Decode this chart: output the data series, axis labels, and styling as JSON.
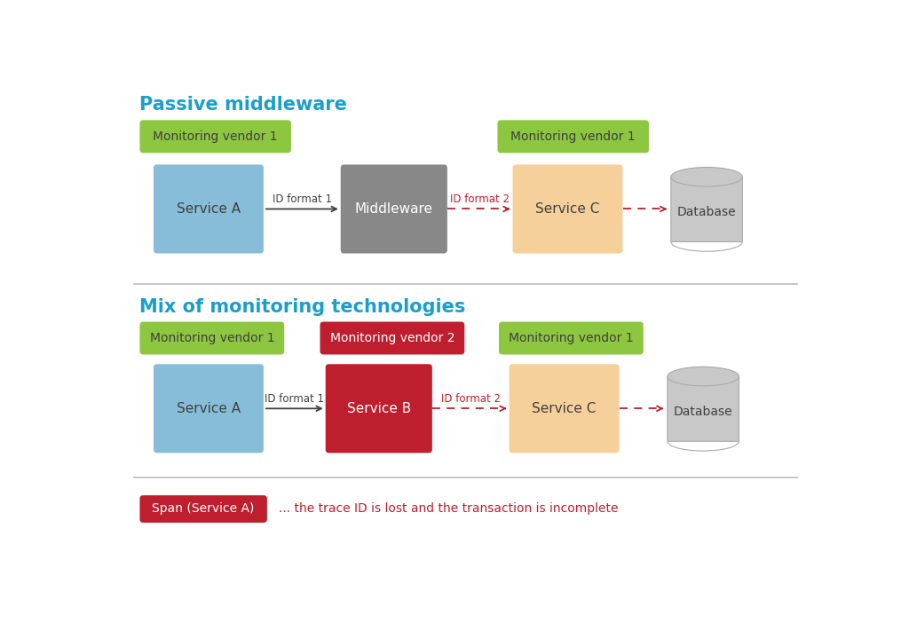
{
  "bg_color": "#ffffff",
  "title1": "Passive middleware",
  "title2": "Mix of monitoring technologies",
  "title_color": "#1a9fcc",
  "title_fontsize": 15,
  "green_color": "#8dc63f",
  "green_text_color": "#404040",
  "blue_color": "#87bdd8",
  "gray_color": "#888888",
  "orange_color": "#f5d09a",
  "red_color": "#be1e2d",
  "dark_text": "#404040",
  "white_text": "#ffffff",
  "cyl_color": "#c8c8c8",
  "cyl_edge": "#aaaaaa",
  "arrow_dark": "#404040",
  "arrow_red": "#be1e2d",
  "divider_color": "#bbbbbb",
  "legend_text": "... the trace ID is lost and the transaction is incomplete",
  "legend_text_color": "#be1e2d",
  "legend_span_label": "Span (Service A)"
}
